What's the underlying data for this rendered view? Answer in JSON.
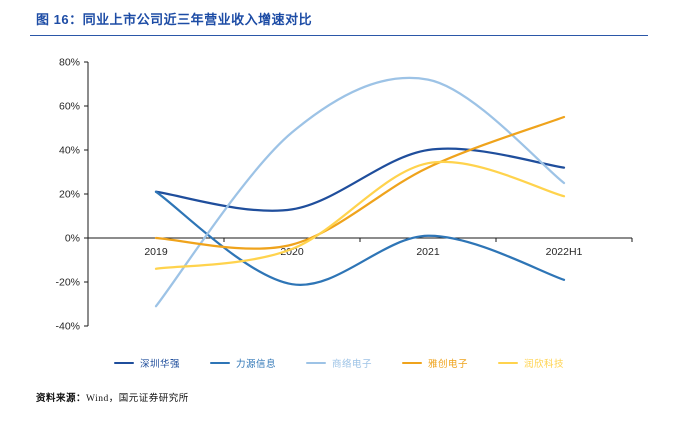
{
  "header": {
    "title": "图 16：同业上市公司近三年营业收入增速对比"
  },
  "chart_data": {
    "type": "line",
    "title": "同业上市公司近三年营业收入增速对比",
    "categories": [
      "2019",
      "2020",
      "2021",
      "2022H1"
    ],
    "series": [
      {
        "name": "深圳华强",
        "color": "#1f4e9c",
        "values": [
          21,
          13,
          40,
          32
        ]
      },
      {
        "name": "力源信息",
        "color": "#2e75b6",
        "values": [
          21,
          -21,
          1,
          -19
        ]
      },
      {
        "name": "商络电子",
        "color": "#9dc3e6",
        "values": [
          -31,
          48,
          72,
          25
        ]
      },
      {
        "name": "雅创电子",
        "color": "#efa31c",
        "values": [
          0,
          -3,
          32,
          55
        ]
      },
      {
        "name": "润欣科技",
        "color": "#ffd34d",
        "values": [
          -14,
          -5,
          34,
          19
        ]
      }
    ],
    "unit": "%",
    "ylim": [
      -40,
      80
    ],
    "ytick_step": 20,
    "grid": false,
    "smooth": true,
    "legend_position": "bottom",
    "axis_color": "#1a1a1a"
  },
  "footer": {
    "source_label": "资料来源：",
    "source_text": "Wind，国元证券研究所"
  }
}
